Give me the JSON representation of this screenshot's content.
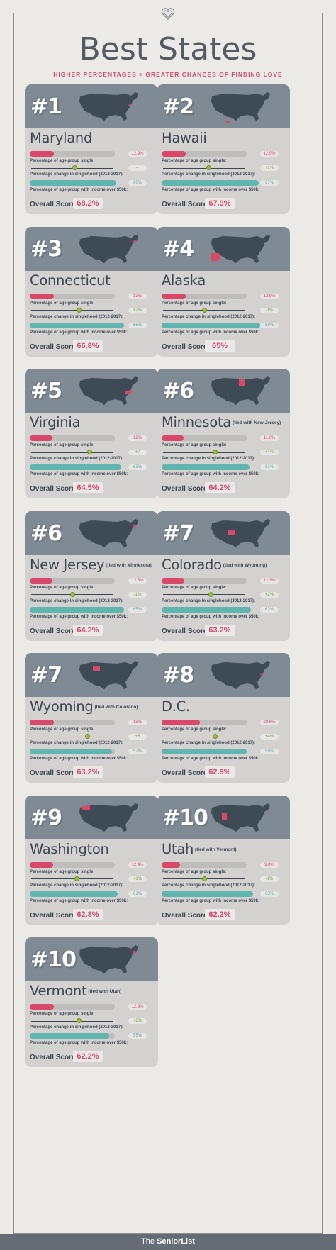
{
  "header": {
    "title": "Best States",
    "subtitle": "HIGHER PERCENTAGES = GREATER CHANCES OF FINDING LOVE"
  },
  "labels": {
    "single": "Percentage of age group single:",
    "change": "Percentage change in singlehood (2012-2017):",
    "income": "Percentage of age group with income over $50k:",
    "overall": "Overall Score:"
  },
  "colors": {
    "accent_red": "#d9476b",
    "accent_teal": "#60b6ae",
    "accent_green": "#9bbd3a",
    "card_top": "#7f8a95",
    "map_fill": "#3f4a57"
  },
  "states": [
    {
      "rank": "#1",
      "name": "Maryland",
      "tie": "",
      "single": "12.9%",
      "single_value": 12.9,
      "change": "--",
      "change_value": 0,
      "income": "60%",
      "income_value": 60,
      "score": "68.2%",
      "highlight": "east-mid"
    },
    {
      "rank": "#2",
      "name": "Hawaii",
      "tie": "",
      "single": "12.9%",
      "single_value": 12.9,
      "change": "+1%",
      "change_value": 1,
      "income": "67%",
      "income_value": 67,
      "score": "67.9%",
      "highlight": "hawaii"
    },
    {
      "rank": "#3",
      "name": "Connecticut",
      "tie": "",
      "single": "13%",
      "single_value": 13,
      "change": "+2%",
      "change_value": 2,
      "income": "65%",
      "income_value": 65,
      "score": "66.8%",
      "highlight": "northeast"
    },
    {
      "rank": "#4",
      "name": "Alaska",
      "tie": "",
      "single": "12.9%",
      "single_value": 12.9,
      "change": "-1%",
      "change_value": -1,
      "income": "68%",
      "income_value": 68,
      "score": "65%",
      "highlight": "alaska"
    },
    {
      "rank": "#5",
      "name": "Virginia",
      "tie": "",
      "single": "12%",
      "single_value": 12,
      "change": "+7",
      "change_value": 7,
      "income": "63%",
      "income_value": 63,
      "score": "64.5%",
      "highlight": "virginia"
    },
    {
      "rank": "#6",
      "name": "Minnesota",
      "tie": "(tied with New Jersey)",
      "single": "11.6%",
      "single_value": 11.6,
      "change": "+4%",
      "change_value": 4,
      "income": "61%",
      "income_value": 61,
      "score": "64.2%",
      "highlight": "minnesota"
    },
    {
      "rank": "#6",
      "name": "New Jersey",
      "tie": "(tied with Minnesota)",
      "single": "12.3%",
      "single_value": 12.3,
      "change": "-1%",
      "change_value": -1,
      "income": "65%",
      "income_value": 65,
      "score": "64.2%",
      "highlight": "northeast"
    },
    {
      "rank": "#7",
      "name": "Colorado",
      "tie": "(tied with Wyoming)",
      "single": "12.1%",
      "single_value": 12.1,
      "change": "+2%",
      "change_value": 2,
      "income": "62%",
      "income_value": 62,
      "score": "63.2%",
      "highlight": "colorado"
    },
    {
      "rank": "#7",
      "name": "Wyoming",
      "tie": "(tied with Colorado)",
      "single": "13%",
      "single_value": 13,
      "change": "+6",
      "change_value": 6,
      "income": "57%",
      "income_value": 57,
      "score": "63.2%",
      "highlight": "wyoming"
    },
    {
      "rank": "#8",
      "name": "D.C.",
      "tie": "",
      "single": "20.6%",
      "single_value": 20.6,
      "change": "+4%",
      "change_value": 4,
      "income": "59%",
      "income_value": 59,
      "score": "62.9%",
      "highlight": "east-mid"
    },
    {
      "rank": "#9",
      "name": "Washington",
      "tie": "",
      "single": "12.4%",
      "single_value": 12.4,
      "change": "+1%",
      "change_value": 1,
      "income": "61%",
      "income_value": 61,
      "score": "62.8%",
      "highlight": "washington"
    },
    {
      "rank": "#10",
      "name": "Utah",
      "tie": "(tied with Vermont)",
      "single": "9.8%",
      "single_value": 9.8,
      "change": "-1%",
      "change_value": -1,
      "income": "63%",
      "income_value": 63,
      "score": "62.2%",
      "highlight": "utah"
    },
    {
      "rank": "#10",
      "name": "Vermont",
      "tie": "(tied with Utah)",
      "single": "12.9%",
      "single_value": 12.9,
      "change": "+2%",
      "change_value": 2,
      "income": "55%",
      "income_value": 55,
      "score": "62.2%",
      "highlight": "northeast"
    }
  ],
  "footer": {
    "brand_prefix": "The",
    "brand": "SeniorList"
  }
}
